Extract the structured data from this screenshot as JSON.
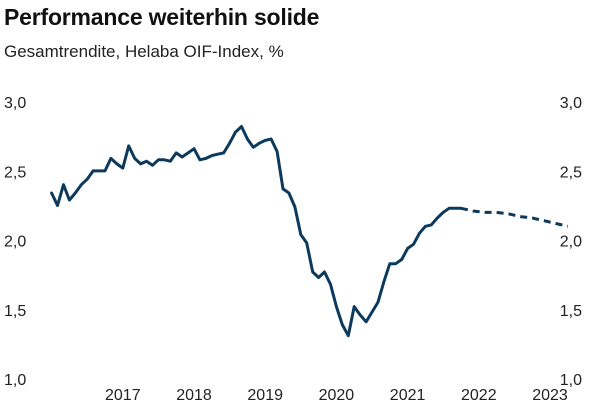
{
  "header": {
    "title": "Performance weiterhin solide",
    "subtitle": "Gesamtrendite, Helaba OIF-Index, %"
  },
  "chart_data": {
    "type": "line",
    "title": "Performance weiterhin solide",
    "subtitle": "Gesamtrendite, Helaba OIF-Index, %",
    "x_ticks": [
      "2017",
      "2018",
      "2019",
      "2020",
      "2021",
      "2022",
      "2023"
    ],
    "y_ticks": [
      "1,0",
      "1,5",
      "2,0",
      "2,5",
      "3,0"
    ],
    "ylim": [
      1.0,
      3.0
    ],
    "xlim": [
      "2016-06",
      "2023-12"
    ],
    "grid": false,
    "color": "#0d3a5c",
    "series": [
      {
        "style": "solid",
        "x": [
          "2016-07",
          "2016-08",
          "2016-09",
          "2016-10",
          "2016-11",
          "2016-12",
          "2017-01",
          "2017-02",
          "2017-03",
          "2017-04",
          "2017-05",
          "2017-06",
          "2017-07",
          "2017-08",
          "2017-09",
          "2017-10",
          "2017-11",
          "2017-12",
          "2018-01",
          "2018-02",
          "2018-03",
          "2018-04",
          "2018-05",
          "2018-06",
          "2018-07",
          "2018-08",
          "2018-09",
          "2018-10",
          "2018-11",
          "2018-12",
          "2019-01",
          "2019-02",
          "2019-03",
          "2019-04",
          "2019-05",
          "2019-06",
          "2019-07",
          "2019-08",
          "2019-09",
          "2019-10",
          "2019-11",
          "2019-12",
          "2020-01",
          "2020-02",
          "2020-03",
          "2020-04",
          "2020-05",
          "2020-06",
          "2020-07",
          "2020-08",
          "2020-09",
          "2020-10",
          "2020-11",
          "2020-12",
          "2021-01",
          "2021-02",
          "2021-03",
          "2021-04",
          "2021-05",
          "2021-06",
          "2021-07",
          "2021-08",
          "2021-09",
          "2021-10",
          "2021-11",
          "2021-12",
          "2022-01",
          "2022-02",
          "2022-03",
          "2022-04"
        ],
        "values": [
          2.35,
          2.26,
          2.41,
          2.3,
          2.35,
          2.41,
          2.45,
          2.51,
          2.51,
          2.51,
          2.6,
          2.56,
          2.53,
          2.69,
          2.6,
          2.56,
          2.58,
          2.55,
          2.59,
          2.59,
          2.58,
          2.64,
          2.61,
          2.64,
          2.67,
          2.59,
          2.6,
          2.62,
          2.63,
          2.64,
          2.71,
          2.79,
          2.83,
          2.74,
          2.68,
          2.71,
          2.73,
          2.74,
          2.65,
          2.38,
          2.35,
          2.25,
          2.05,
          1.99,
          1.78,
          1.74,
          1.78,
          1.69,
          1.53,
          1.4,
          1.32,
          1.53,
          1.47,
          1.42,
          1.49,
          1.56,
          1.71,
          1.84,
          1.84,
          1.87,
          1.95,
          1.98,
          2.06,
          2.11,
          2.12,
          2.17,
          2.21,
          2.24,
          2.24,
          2.24
        ]
      },
      {
        "style": "dashed",
        "x": [
          "2022-04",
          "2022-06",
          "2022-08",
          "2022-10",
          "2022-12",
          "2023-02",
          "2023-04",
          "2023-06",
          "2023-08",
          "2023-10"
        ],
        "values": [
          2.24,
          2.22,
          2.21,
          2.21,
          2.2,
          2.18,
          2.17,
          2.15,
          2.13,
          2.11
        ]
      }
    ]
  }
}
